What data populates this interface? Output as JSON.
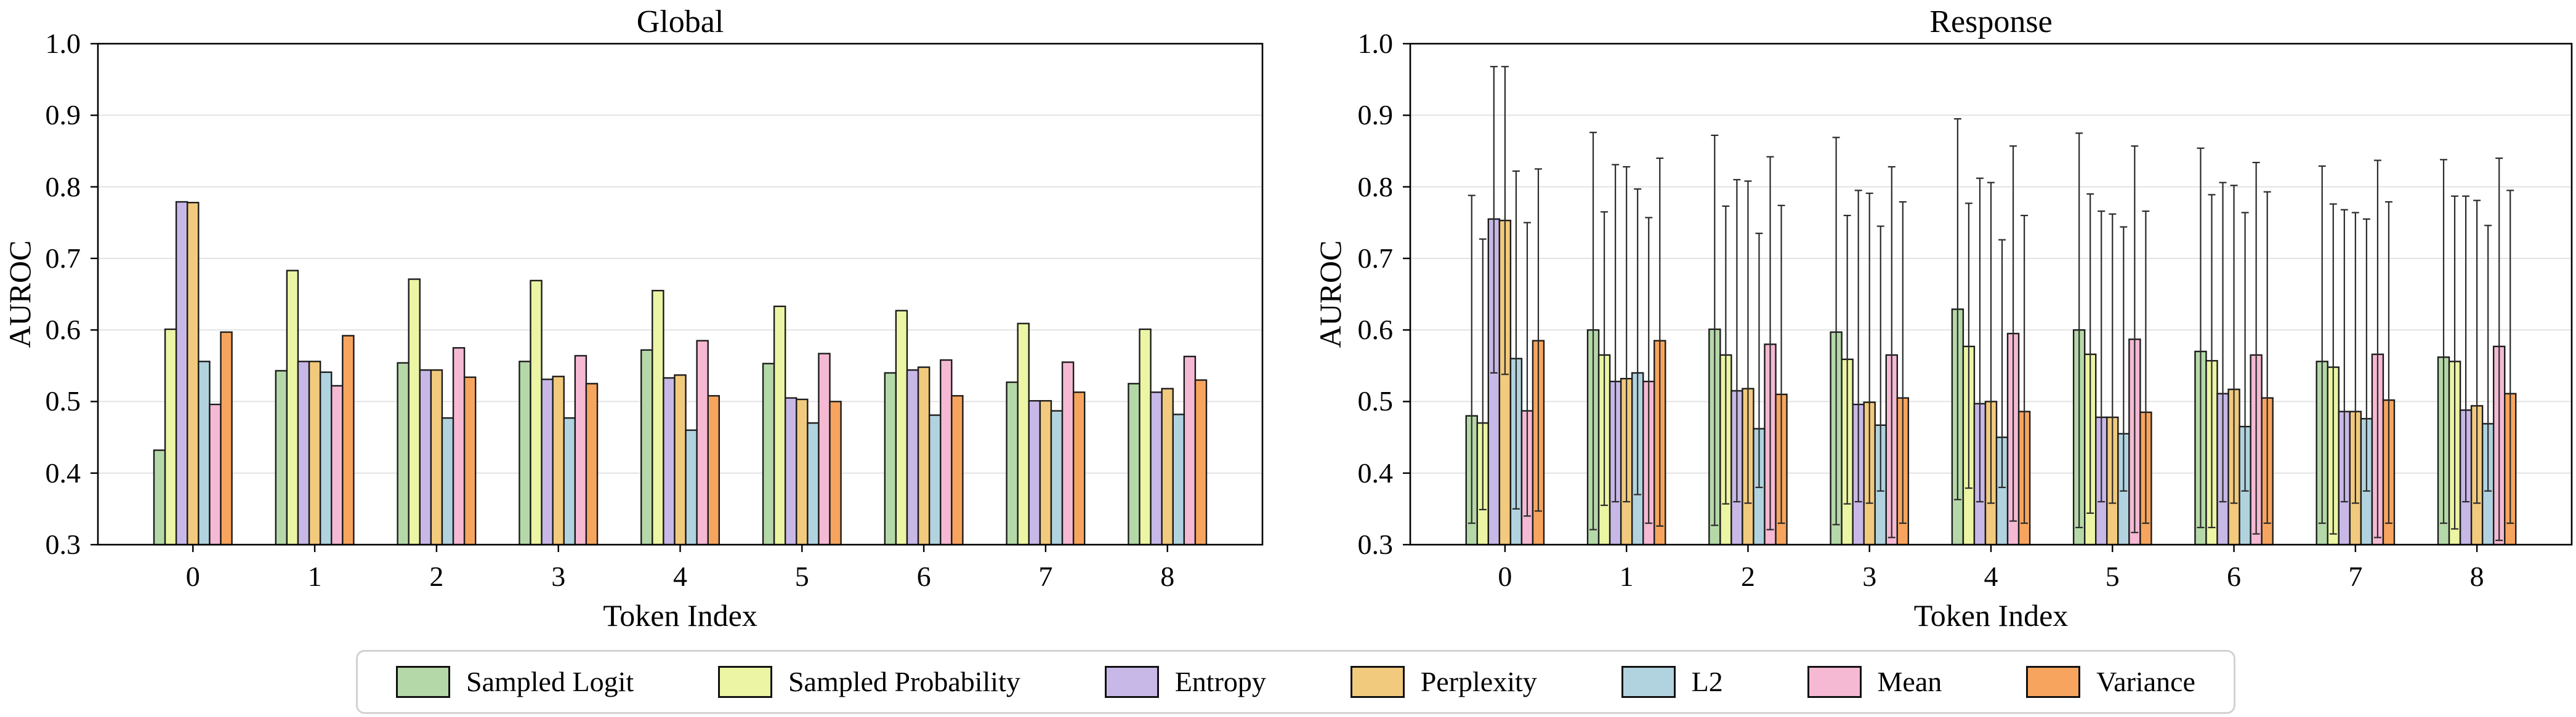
{
  "figure": {
    "background": "#ffffff"
  },
  "legend": {
    "items": [
      {
        "label": "Sampled Logit",
        "color": "#b5d8a8"
      },
      {
        "label": "Sampled Probability",
        "color": "#ebf5a4"
      },
      {
        "label": "Entropy",
        "color": "#c8b8e8"
      },
      {
        "label": "Perplexity",
        "color": "#f2ca7d"
      },
      {
        "label": "L2",
        "color": "#b1d3df"
      },
      {
        "label": "Mean",
        "color": "#f5b9d3"
      },
      {
        "label": "Variance",
        "color": "#f7a55e"
      }
    ]
  },
  "chart_data": [
    {
      "type": "bar",
      "title": "Global",
      "xlabel": "Token Index",
      "ylabel": "AUROC",
      "categories": [
        "0",
        "1",
        "2",
        "3",
        "4",
        "5",
        "6",
        "7",
        "8"
      ],
      "ylim": [
        0.3,
        1.0
      ],
      "yticks": [
        0.3,
        0.4,
        0.5,
        0.6,
        0.7,
        0.8,
        0.9,
        1.0
      ],
      "grid": true,
      "legend_position": "below-figure",
      "series": [
        {
          "name": "Sampled Logit",
          "color": "#b5d8a8",
          "values": [
            0.432,
            0.543,
            0.554,
            0.556,
            0.572,
            0.553,
            0.54,
            0.527,
            0.525
          ]
        },
        {
          "name": "Sampled Probability",
          "color": "#ebf5a4",
          "values": [
            0.601,
            0.683,
            0.671,
            0.669,
            0.655,
            0.633,
            0.627,
            0.609,
            0.601
          ]
        },
        {
          "name": "Entropy",
          "color": "#c8b8e8",
          "values": [
            0.779,
            0.556,
            0.544,
            0.531,
            0.533,
            0.505,
            0.544,
            0.501,
            0.513
          ]
        },
        {
          "name": "Perplexity",
          "color": "#f2ca7d",
          "values": [
            0.778,
            0.556,
            0.544,
            0.535,
            0.537,
            0.503,
            0.548,
            0.501,
            0.518
          ]
        },
        {
          "name": "L2",
          "color": "#b1d3df",
          "values": [
            0.556,
            0.541,
            0.477,
            0.477,
            0.46,
            0.47,
            0.481,
            0.487,
            0.482
          ]
        },
        {
          "name": "Mean",
          "color": "#f5b9d3",
          "values": [
            0.496,
            0.522,
            0.575,
            0.564,
            0.585,
            0.567,
            0.558,
            0.555,
            0.563
          ]
        },
        {
          "name": "Variance",
          "color": "#f7a55e",
          "values": [
            0.597,
            0.592,
            0.534,
            0.525,
            0.508,
            0.5,
            0.508,
            0.513,
            0.53
          ]
        }
      ]
    },
    {
      "type": "bar",
      "title": "Response",
      "xlabel": "Token Index",
      "ylabel": "AUROC",
      "categories": [
        "0",
        "1",
        "2",
        "3",
        "4",
        "5",
        "6",
        "7",
        "8"
      ],
      "ylim": [
        0.3,
        1.0
      ],
      "yticks": [
        0.3,
        0.4,
        0.5,
        0.6,
        0.7,
        0.8,
        0.9,
        1.0
      ],
      "grid": true,
      "error_bars": "min-max whiskers with caps",
      "series": [
        {
          "name": "Sampled Logit",
          "color": "#b5d8a8",
          "values": [
            0.48,
            0.6,
            0.601,
            0.597,
            0.629,
            0.6,
            0.57,
            0.556,
            0.562
          ],
          "err_hi": [
            0.788,
            0.876,
            0.872,
            0.869,
            0.895,
            0.875,
            0.854,
            0.829,
            0.838
          ],
          "err_lo": [
            0.33,
            0.321,
            0.327,
            0.328,
            0.363,
            0.324,
            0.324,
            0.33,
            0.33
          ]
        },
        {
          "name": "Sampled Probability",
          "color": "#ebf5a4",
          "values": [
            0.47,
            0.565,
            0.565,
            0.559,
            0.577,
            0.566,
            0.557,
            0.548,
            0.556
          ],
          "err_hi": [
            0.727,
            0.765,
            0.773,
            0.76,
            0.777,
            0.79,
            0.789,
            0.776,
            0.787
          ],
          "err_lo": [
            0.349,
            0.355,
            0.357,
            0.357,
            0.379,
            0.344,
            0.324,
            0.315,
            0.322
          ]
        },
        {
          "name": "Entropy",
          "color": "#c8b8e8",
          "values": [
            0.755,
            0.528,
            0.515,
            0.496,
            0.497,
            0.478,
            0.511,
            0.486,
            0.488
          ],
          "err_hi": [
            0.968,
            0.831,
            0.81,
            0.795,
            0.812,
            0.766,
            0.806,
            0.768,
            0.787
          ],
          "err_lo": [
            0.54,
            0.36,
            0.36,
            0.36,
            0.36,
            0.36,
            0.36,
            0.36,
            0.36
          ]
        },
        {
          "name": "Perplexity",
          "color": "#f2ca7d",
          "values": [
            0.753,
            0.532,
            0.518,
            0.499,
            0.5,
            0.478,
            0.517,
            0.486,
            0.494
          ],
          "err_hi": [
            0.968,
            0.828,
            0.808,
            0.791,
            0.806,
            0.762,
            0.802,
            0.764,
            0.781
          ],
          "err_lo": [
            0.538,
            0.36,
            0.358,
            0.358,
            0.358,
            0.358,
            0.358,
            0.358,
            0.358
          ]
        },
        {
          "name": "L2",
          "color": "#b1d3df",
          "values": [
            0.56,
            0.54,
            0.462,
            0.467,
            0.45,
            0.455,
            0.465,
            0.476,
            0.469
          ],
          "err_hi": [
            0.822,
            0.797,
            0.735,
            0.745,
            0.726,
            0.744,
            0.764,
            0.755,
            0.746
          ],
          "err_lo": [
            0.35,
            0.37,
            0.38,
            0.375,
            0.38,
            0.375,
            0.375,
            0.375,
            0.375
          ]
        },
        {
          "name": "Mean",
          "color": "#f5b9d3",
          "values": [
            0.487,
            0.528,
            0.58,
            0.565,
            0.595,
            0.587,
            0.565,
            0.566,
            0.577
          ],
          "err_hi": [
            0.75,
            0.757,
            0.842,
            0.828,
            0.857,
            0.857,
            0.834,
            0.837,
            0.84
          ],
          "err_lo": [
            0.34,
            0.33,
            0.321,
            0.31,
            0.333,
            0.317,
            0.315,
            0.31,
            0.306
          ]
        },
        {
          "name": "Variance",
          "color": "#f7a55e",
          "values": [
            0.585,
            0.585,
            0.51,
            0.505,
            0.486,
            0.485,
            0.505,
            0.502,
            0.511
          ],
          "err_hi": [
            0.825,
            0.84,
            0.774,
            0.779,
            0.76,
            0.766,
            0.793,
            0.779,
            0.795
          ],
          "err_lo": [
            0.347,
            0.326,
            0.33,
            0.33,
            0.33,
            0.33,
            0.33,
            0.33,
            0.33
          ]
        }
      ]
    }
  ]
}
